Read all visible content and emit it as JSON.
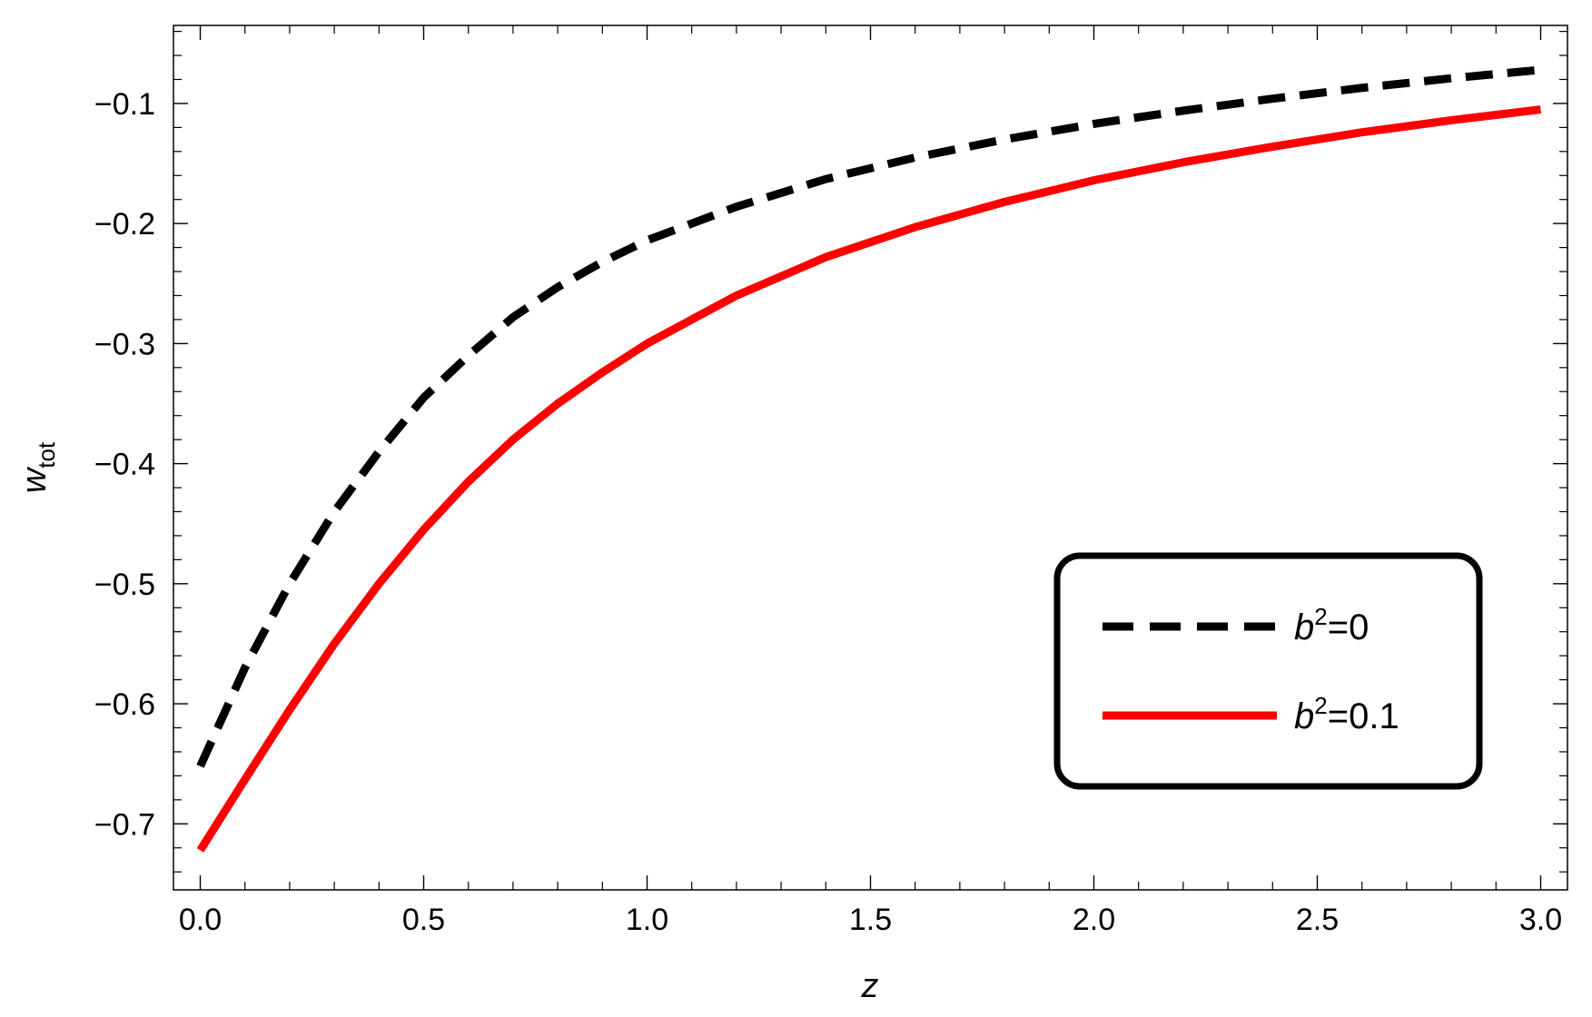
{
  "chart_data": {
    "type": "line",
    "title": "",
    "xlabel": "z",
    "ylabel": {
      "main": "w",
      "subscript": "tot"
    },
    "xlim": [
      -0.06,
      3.06
    ],
    "ylim": [
      -0.755,
      -0.035
    ],
    "x_ticks": [
      {
        "value": 0.0,
        "label": "0.0"
      },
      {
        "value": 0.5,
        "label": "0.5"
      },
      {
        "value": 1.0,
        "label": "1.0"
      },
      {
        "value": 1.5,
        "label": "1.5"
      },
      {
        "value": 2.0,
        "label": "2.0"
      },
      {
        "value": 2.5,
        "label": "2.5"
      },
      {
        "value": 3.0,
        "label": "3.0"
      }
    ],
    "y_ticks": [
      {
        "value": -0.1,
        "label": "−0.1"
      },
      {
        "value": -0.2,
        "label": "−0.2"
      },
      {
        "value": -0.3,
        "label": "−0.3"
      },
      {
        "value": -0.4,
        "label": "−0.4"
      },
      {
        "value": -0.5,
        "label": "−0.5"
      },
      {
        "value": -0.6,
        "label": "−0.6"
      },
      {
        "value": -0.7,
        "label": "−0.7"
      }
    ],
    "x_minor_step": 0.1,
    "y_minor_step": 0.02,
    "grid": false,
    "legend": {
      "position": "bottom-right",
      "entries": [
        {
          "series_index": 0,
          "label_base": "b",
          "label_sup": "2",
          "label_rest": "=0"
        },
        {
          "series_index": 1,
          "label_base": "b",
          "label_sup": "2",
          "label_rest": "=0.1"
        }
      ]
    },
    "series": [
      {
        "name": "b²=0",
        "color": "#000000",
        "style": "dashed",
        "x": [
          0.0,
          0.1,
          0.2,
          0.3,
          0.4,
          0.5,
          0.6,
          0.7,
          0.8,
          0.9,
          1.0,
          1.2,
          1.4,
          1.6,
          1.8,
          2.0,
          2.2,
          2.4,
          2.6,
          2.8,
          3.0
        ],
        "y": [
          -0.652,
          -0.57,
          -0.5,
          -0.44,
          -0.39,
          -0.345,
          -0.31,
          -0.278,
          -0.253,
          -0.232,
          -0.214,
          -0.186,
          -0.163,
          -0.145,
          -0.13,
          -0.117,
          -0.106,
          -0.096,
          -0.087,
          -0.079,
          -0.072
        ]
      },
      {
        "name": "b²=0.1",
        "color": "#ff0000",
        "style": "solid",
        "x": [
          0.0,
          0.1,
          0.2,
          0.3,
          0.4,
          0.5,
          0.6,
          0.7,
          0.8,
          0.9,
          1.0,
          1.2,
          1.4,
          1.6,
          1.8,
          2.0,
          2.2,
          2.4,
          2.6,
          2.8,
          3.0
        ],
        "y": [
          -0.722,
          -0.663,
          -0.605,
          -0.55,
          -0.5,
          -0.455,
          -0.415,
          -0.38,
          -0.35,
          -0.324,
          -0.3,
          -0.26,
          -0.228,
          -0.203,
          -0.182,
          -0.164,
          -0.149,
          -0.136,
          -0.124,
          -0.114,
          -0.105
        ]
      }
    ]
  }
}
